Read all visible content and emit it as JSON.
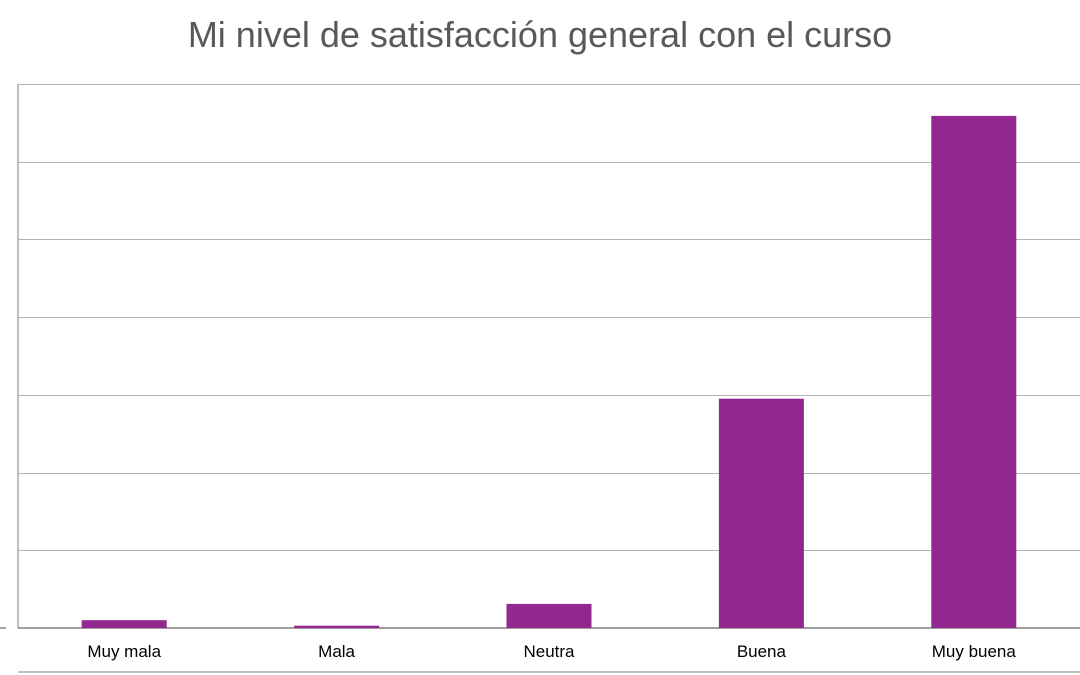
{
  "chart_data": {
    "type": "bar",
    "title": "Mi nivel de satisfacción general con el curso",
    "categories": [
      "Muy mala",
      "Mala",
      "Neutra",
      "Buena",
      "Muy buena"
    ],
    "series": [
      {
        "values": [
          1,
          0.3,
          3.1,
          29.5,
          65.9
        ]
      }
    ],
    "ylim": [
      0,
      70
    ],
    "grid": true,
    "xlabel": "",
    "ylabel": "",
    "colors": {
      "bar": "#92278f",
      "grid": "#b3b3b3",
      "axis": "#7f7f7f"
    }
  }
}
